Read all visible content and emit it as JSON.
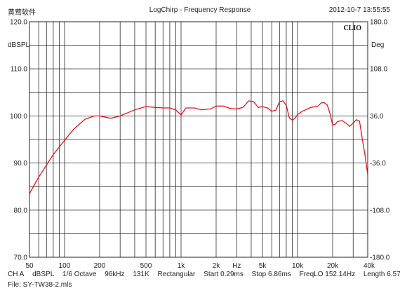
{
  "header": {
    "app": "黄莺软件",
    "title": "LogChirp - Frequency Response",
    "timestamp": "2012-10-7 13:55:55"
  },
  "brand": "CLIO",
  "footer": {
    "channel": "CH A",
    "unit": "dBSPL",
    "smoothing": "1/6 Octave",
    "rate": "96kHz",
    "size": "131K",
    "window": "Rectangular",
    "start": "Start 0.29ms",
    "stop": "Stop 6.86ms",
    "freqlo": "FreqLO 152.14Hz",
    "length": "Length 6.57ms",
    "file": "File: SY-TW38-2.mls"
  },
  "chart_data": {
    "type": "line",
    "title": "LogChirp - Frequency Response",
    "xlabel": "Hz",
    "ylabel": "dBSPL",
    "y2label": "Deg",
    "xscale": "log",
    "xlim": [
      50,
      40000
    ],
    "ylim": [
      70,
      120
    ],
    "y2lim": [
      -180,
      180
    ],
    "grid": true,
    "x_tick_labels": [
      "50",
      "100",
      "200",
      "500",
      "1k",
      "2k",
      "Hz",
      "5k",
      "10k",
      "20k",
      "40k"
    ],
    "x_tick_values": [
      50,
      100,
      200,
      500,
      1000,
      2000,
      null,
      5000,
      10000,
      20000,
      40000
    ],
    "y_ticks": [
      {
        "value": 120,
        "label": "120.0"
      },
      {
        "value": 110,
        "label": "110.0"
      },
      {
        "value": 100,
        "label": "100.0"
      },
      {
        "value": 90,
        "label": "90.0"
      },
      {
        "value": 80,
        "label": "80.0"
      },
      {
        "value": 70,
        "label": "70.0"
      }
    ],
    "y2_ticks": [
      {
        "value": 180,
        "label": "180.0"
      },
      {
        "value": 108,
        "label": "108.0"
      },
      {
        "value": 36,
        "label": "36.0"
      },
      {
        "value": -36,
        "label": "-36.0"
      },
      {
        "value": -108,
        "label": "-108.0"
      },
      {
        "value": -180,
        "label": "-180.0"
      }
    ],
    "series": [
      {
        "color": "#e8141c",
        "x": [
          50,
          60,
          70,
          80,
          100,
          120,
          150,
          180,
          200,
          250,
          300,
          400,
          500,
          600,
          700,
          800,
          900,
          1000,
          1100,
          1300,
          1500,
          1800,
          2000,
          2300,
          2700,
          3000,
          3400,
          3800,
          4200,
          4600,
          5000,
          5500,
          6000,
          6500,
          7000,
          7500,
          8000,
          8500,
          9000,
          9500,
          10000,
          11000,
          13000,
          15000,
          16000,
          17000,
          18000,
          19000,
          20000,
          21000,
          22000,
          24000,
          26000,
          28000,
          30000,
          32000,
          34000,
          36000,
          38000,
          40000
        ],
        "y": [
          83.5,
          87,
          89.6,
          91.8,
          94.8,
          97.2,
          99.3,
          100,
          100,
          99.5,
          100,
          101.3,
          102,
          101.8,
          101.7,
          101.7,
          101.3,
          100.2,
          101.7,
          101.7,
          101.3,
          101.5,
          102.1,
          102.1,
          101.5,
          101.5,
          101.8,
          103.2,
          103,
          101.8,
          102,
          101.7,
          101,
          101.2,
          103,
          103.2,
          102.2,
          99.6,
          99.1,
          99.5,
          100.3,
          101,
          101.8,
          102.1,
          102.8,
          102.8,
          102.3,
          100.5,
          98.1,
          98.2,
          98.8,
          99,
          98.5,
          97.8,
          98.5,
          99.2,
          98.9,
          95,
          91.5,
          87.5
        ]
      }
    ]
  }
}
